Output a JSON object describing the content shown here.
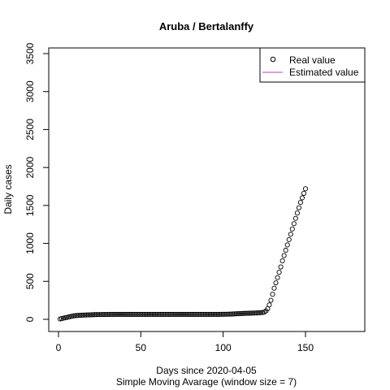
{
  "chart_data": {
    "type": "scatter",
    "title": "Aruba / Bertalanffy",
    "xlabel": "Days since 2020-04-05",
    "subtitle": "Simple Moving Avarage (window size = 7)",
    "ylabel": "Daily cases",
    "xlim": [
      0,
      180
    ],
    "ylim": [
      0,
      3500
    ],
    "x_ticks": [
      0,
      50,
      100,
      150
    ],
    "y_ticks": [
      0,
      500,
      1000,
      1500,
      2000,
      2500,
      3000,
      3500
    ],
    "grid": false,
    "legend_position": "top-right",
    "legend": [
      {
        "label": "Real value",
        "marker": "open-circle",
        "color": "#000000"
      },
      {
        "label": "Estimated value",
        "marker": "line",
        "color": "#a64ca6"
      }
    ],
    "series": [
      {
        "name": "Real value",
        "x": [
          1,
          2,
          3,
          4,
          5,
          6,
          7,
          8,
          9,
          10,
          11,
          12,
          13,
          14,
          15,
          16,
          17,
          18,
          19,
          20,
          21,
          22,
          23,
          24,
          25,
          26,
          27,
          28,
          29,
          30,
          31,
          32,
          33,
          34,
          35,
          36,
          37,
          38,
          39,
          40,
          41,
          42,
          43,
          44,
          45,
          46,
          47,
          48,
          49,
          50,
          51,
          52,
          53,
          54,
          55,
          56,
          57,
          58,
          59,
          60,
          61,
          62,
          63,
          64,
          65,
          66,
          67,
          68,
          69,
          70,
          71,
          72,
          73,
          74,
          75,
          76,
          77,
          78,
          79,
          80,
          81,
          82,
          83,
          84,
          85,
          86,
          87,
          88,
          89,
          90,
          91,
          92,
          93,
          94,
          95,
          96,
          97,
          98,
          99,
          100,
          101,
          102,
          103,
          104,
          105,
          106,
          107,
          108,
          109,
          110,
          111,
          112,
          113,
          114,
          115,
          116,
          117,
          118,
          119,
          120,
          121,
          122,
          123,
          124,
          125,
          126,
          127,
          128,
          129,
          130,
          131,
          132,
          133,
          134,
          135,
          136,
          137,
          138,
          139,
          140,
          141,
          142,
          143,
          144,
          145,
          146,
          147,
          148,
          149,
          150
        ],
        "y": [
          5,
          10,
          15,
          20,
          25,
          30,
          35,
          40,
          45,
          48,
          50,
          52,
          53,
          54,
          55,
          56,
          57,
          58,
          59,
          60,
          61,
          62,
          62,
          63,
          63,
          63,
          64,
          64,
          64,
          64,
          64,
          65,
          65,
          65,
          65,
          65,
          65,
          65,
          65,
          65,
          65,
          65,
          65,
          65,
          65,
          65,
          65,
          65,
          65,
          65,
          65,
          65,
          65,
          65,
          65,
          65,
          65,
          65,
          65,
          65,
          65,
          65,
          65,
          65,
          65,
          65,
          65,
          65,
          65,
          65,
          65,
          65,
          65,
          65,
          65,
          65,
          65,
          65,
          65,
          65,
          65,
          65,
          65,
          65,
          65,
          65,
          65,
          65,
          65,
          65,
          65,
          65,
          65,
          65,
          65,
          65,
          65,
          65,
          66,
          66,
          67,
          67,
          68,
          68,
          69,
          70,
          72,
          73,
          74,
          75,
          76,
          77,
          78,
          79,
          80,
          80,
          81,
          82,
          83,
          84,
          85,
          86,
          88,
          90,
          95,
          110,
          140,
          190,
          250,
          330,
          410,
          480,
          550,
          620,
          690,
          770,
          840,
          910,
          980,
          1050,
          1120,
          1190,
          1260,
          1330,
          1400,
          1470,
          1540,
          1600,
          1660,
          1720
        ]
      }
    ]
  }
}
